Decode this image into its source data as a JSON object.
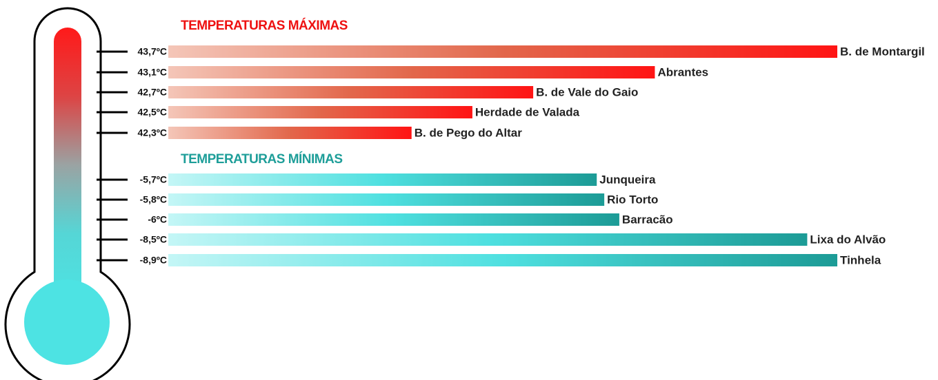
{
  "chart_data": [
    {
      "type": "bar",
      "orientation": "horizontal",
      "title": "TEMPERATURAS MÁXIMAS",
      "categories": [
        "B. de Montargil",
        "Abrantes",
        "B. de Vale do Gaio",
        "Herdade de Valada",
        "B. de Pego do Altar"
      ],
      "values": [
        43.7,
        43.1,
        42.7,
        42.5,
        42.3
      ],
      "value_labels": [
        "43,7ºC",
        "43,1ºC",
        "42,7ºC",
        "42,5ºC",
        "42,3ºC"
      ],
      "xlim": [
        41.5,
        43.7
      ],
      "title_color": "#ee1111",
      "colors": [
        "#f4c6b8",
        "#e2674b",
        "#ff1414"
      ]
    },
    {
      "type": "bar",
      "orientation": "horizontal",
      "title": "TEMPERATURAS MÍNIMAS",
      "categories": [
        "Junqueira",
        "Rio Torto",
        "Barracão",
        "Lixa do Alvão",
        "Tinhela"
      ],
      "values": [
        -5.7,
        -5.8,
        -6,
        -8.5,
        -8.9
      ],
      "value_labels": [
        "-5,7ºC",
        "-5,8ºC",
        "-6ºC",
        "-8,5ºC",
        "-8,9ºC"
      ],
      "xlim": [
        0,
        -8.9
      ],
      "title_color": "#1e9e99",
      "colors": [
        "#c4f6f6",
        "#4fe0e0",
        "#1c9b96"
      ]
    }
  ]
}
